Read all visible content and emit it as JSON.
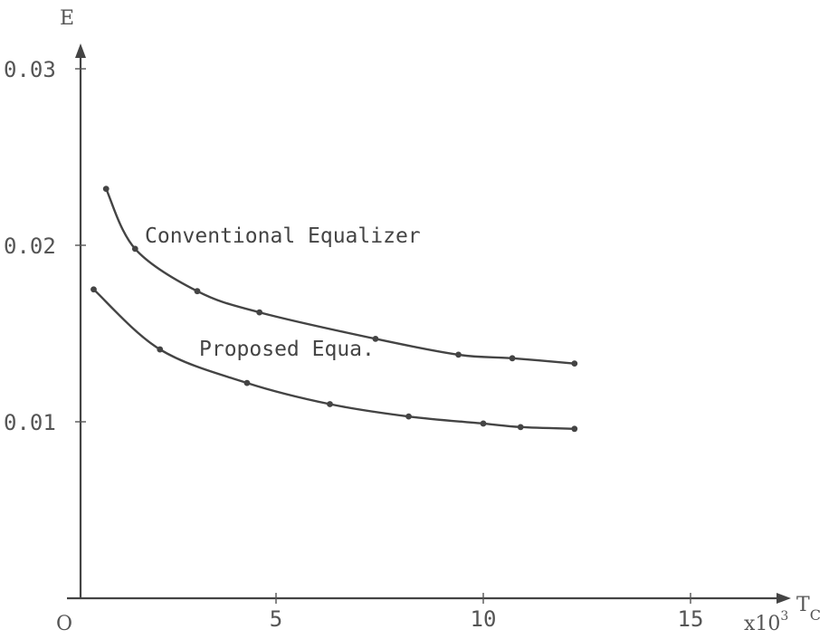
{
  "chart_data": {
    "type": "line",
    "title": "",
    "ylabel": "E",
    "xlabel": "T",
    "xlabel_sub": "C",
    "x_multiplier": "x10",
    "x_multiplier_exp": "3",
    "origin_label": "O",
    "xlim": [
      0,
      17
    ],
    "ylim": [
      0,
      0.031
    ],
    "x_ticks": [
      {
        "value": 5,
        "label": "5"
      },
      {
        "value": 10,
        "label": "10"
      },
      {
        "value": 15,
        "label": "15"
      }
    ],
    "y_ticks": [
      {
        "value": 0.01,
        "label": "0.01"
      },
      {
        "value": 0.02,
        "label": "0.02"
      },
      {
        "value": 0.03,
        "label": "0.03"
      }
    ],
    "series": [
      {
        "name": "Conventional Equalizer",
        "x": [
          0.9,
          1.6,
          3.1,
          4.6,
          7.4,
          9.4,
          10.7,
          12.2
        ],
        "y": [
          0.0232,
          0.0198,
          0.0174,
          0.0162,
          0.0147,
          0.0138,
          0.0136,
          0.0133
        ]
      },
      {
        "name": "Proposed Equa.",
        "x": [
          0.6,
          2.2,
          4.3,
          6.3,
          8.2,
          10.0,
          10.9,
          12.2
        ],
        "y": [
          0.0175,
          0.0141,
          0.0122,
          0.011,
          0.0103,
          0.0099,
          0.0097,
          0.0096
        ]
      }
    ]
  }
}
